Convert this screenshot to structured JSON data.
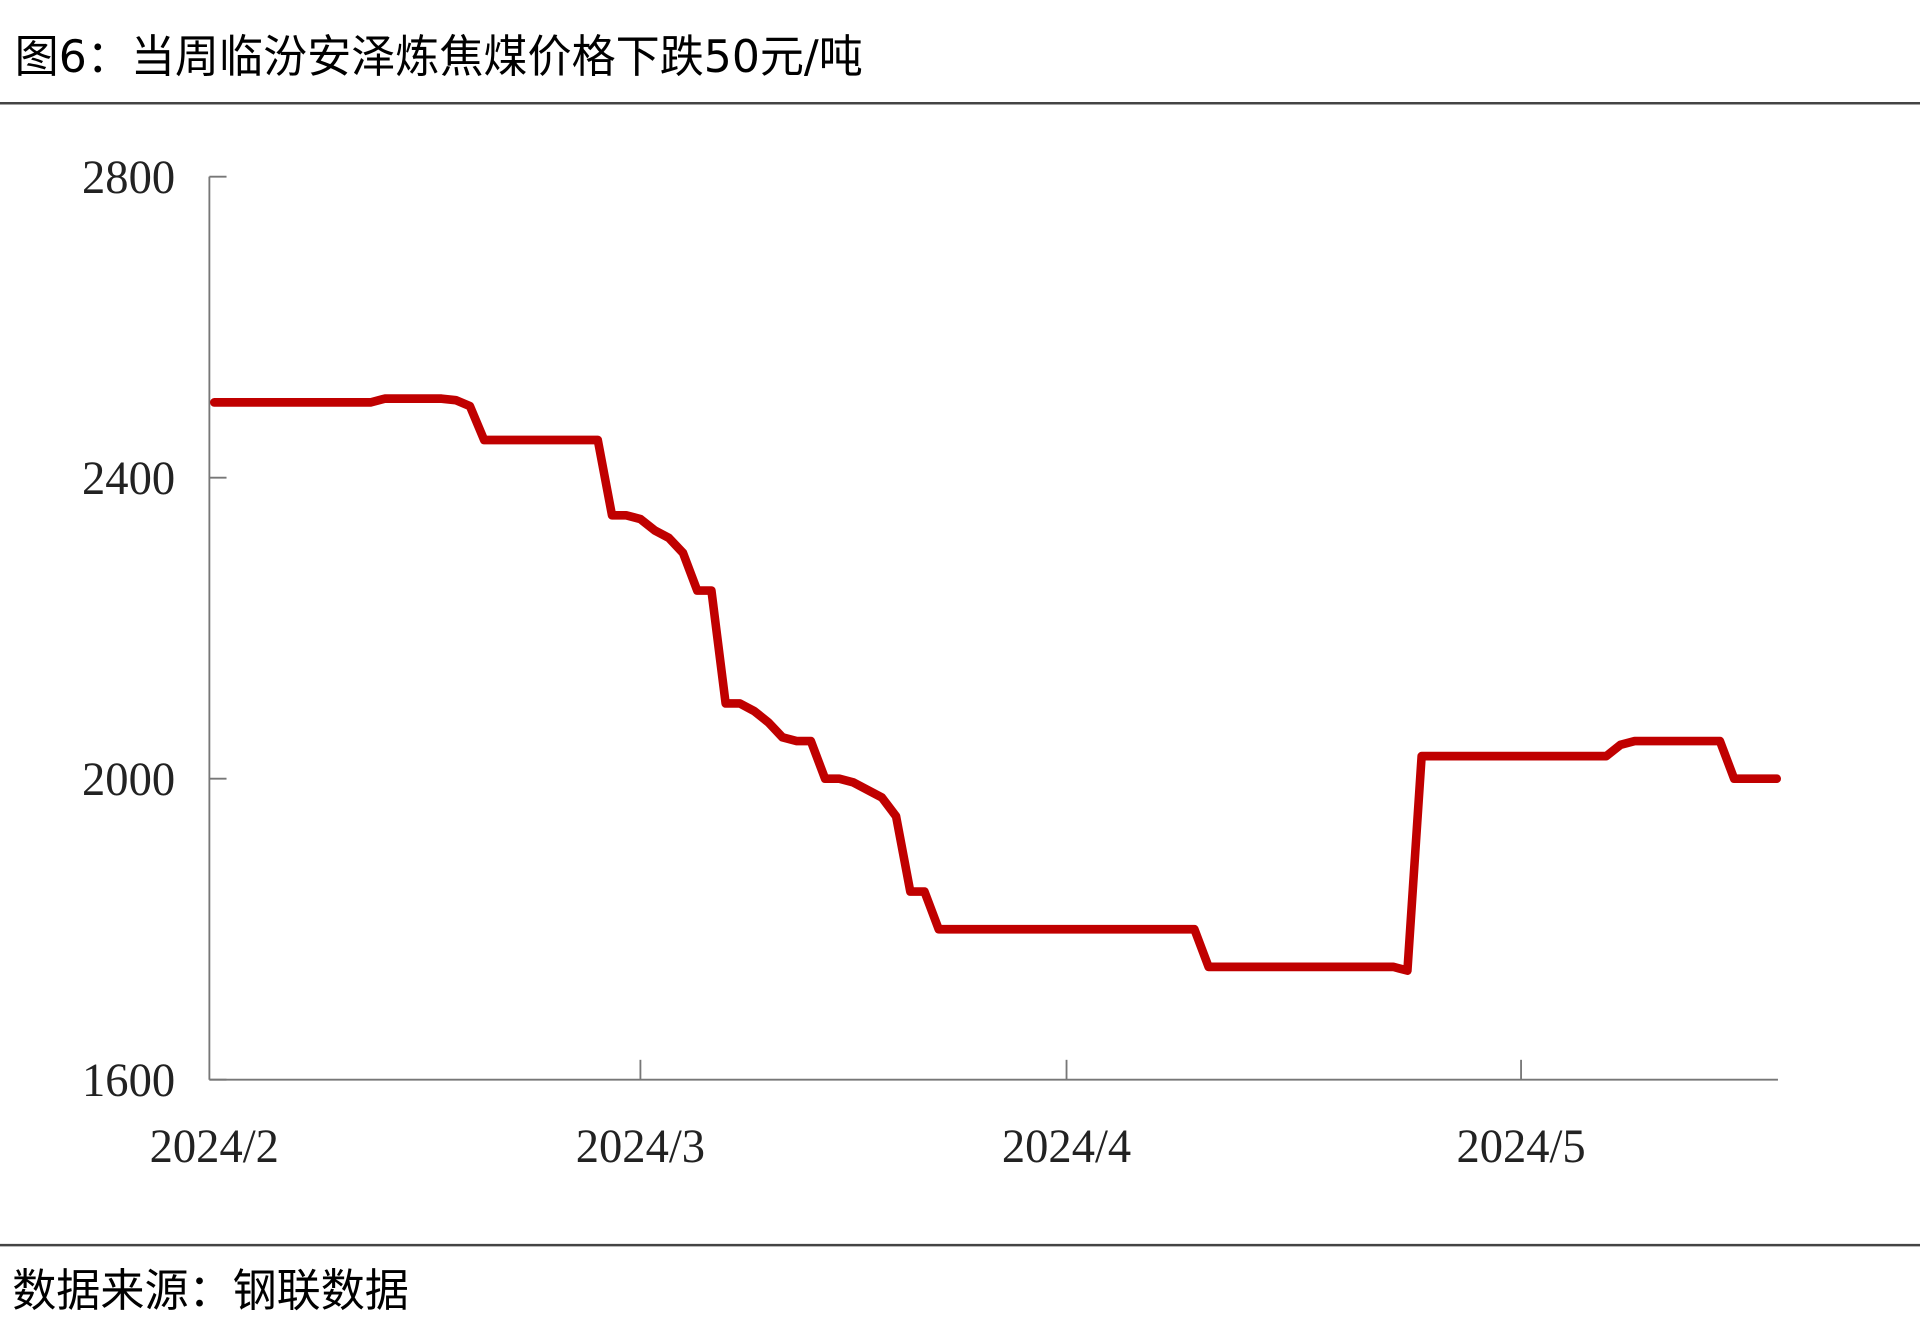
{
  "chart_data": {
    "type": "line",
    "title": "图6：当周临汾安泽炼焦煤价格下跌50元/吨",
    "source": "数据来源：钢联数据",
    "color": "#c00000",
    "ylim": [
      1600,
      2800
    ],
    "yticks": [
      1600,
      2000,
      2400,
      2800
    ],
    "categories": [
      "2024/2",
      null,
      null,
      null,
      null,
      null,
      null,
      null,
      null,
      null,
      null,
      null,
      null,
      null,
      null,
      null,
      null,
      null,
      null,
      null,
      null,
      null,
      null,
      null,
      null,
      null,
      null,
      null,
      null,
      null,
      "2024/3",
      null,
      null,
      null,
      null,
      null,
      null,
      null,
      null,
      null,
      null,
      null,
      null,
      null,
      null,
      null,
      null,
      null,
      null,
      null,
      null,
      null,
      null,
      null,
      null,
      null,
      null,
      null,
      null,
      null,
      "2024/4",
      null,
      null,
      null,
      null,
      null,
      null,
      null,
      null,
      null,
      null,
      null,
      null,
      null,
      null,
      null,
      null,
      null,
      null,
      null,
      null,
      null,
      null,
      null,
      null,
      null,
      null,
      null,
      null,
      null,
      null,
      null,
      "2024/5",
      null,
      null,
      null,
      null,
      null,
      null,
      null,
      null,
      null,
      null,
      null,
      null,
      null,
      null,
      null,
      null,
      null,
      null
    ],
    "values": [
      2500,
      2500,
      2500,
      2500,
      2500,
      2500,
      2500,
      2500,
      2500,
      2500,
      2500,
      2500,
      2505,
      2505,
      2505,
      2505,
      2505,
      2503,
      2495,
      2450,
      2450,
      2450,
      2450,
      2450,
      2450,
      2450,
      2450,
      2450,
      2350,
      2350,
      2345,
      2330,
      2320,
      2300,
      2250,
      2250,
      2100,
      2100,
      2090,
      2075,
      2055,
      2050,
      2050,
      2000,
      2000,
      1995,
      1985,
      1975,
      1950,
      1850,
      1850,
      1800,
      1800,
      1800,
      1800,
      1800,
      1800,
      1800,
      1800,
      1800,
      1800,
      1800,
      1800,
      1800,
      1800,
      1800,
      1800,
      1800,
      1800,
      1800,
      1750,
      1750,
      1750,
      1750,
      1750,
      1750,
      1750,
      1750,
      1750,
      1750,
      1750,
      1750,
      1750,
      1750,
      1745,
      2030,
      2030,
      2030,
      2030,
      2030,
      2030,
      2030,
      2030,
      2030,
      2030,
      2030,
      2030,
      2030,
      2030,
      2045,
      2050,
      2050,
      2050,
      2050,
      2050,
      2050,
      2050,
      2000,
      2000,
      2000,
      2000
    ]
  }
}
